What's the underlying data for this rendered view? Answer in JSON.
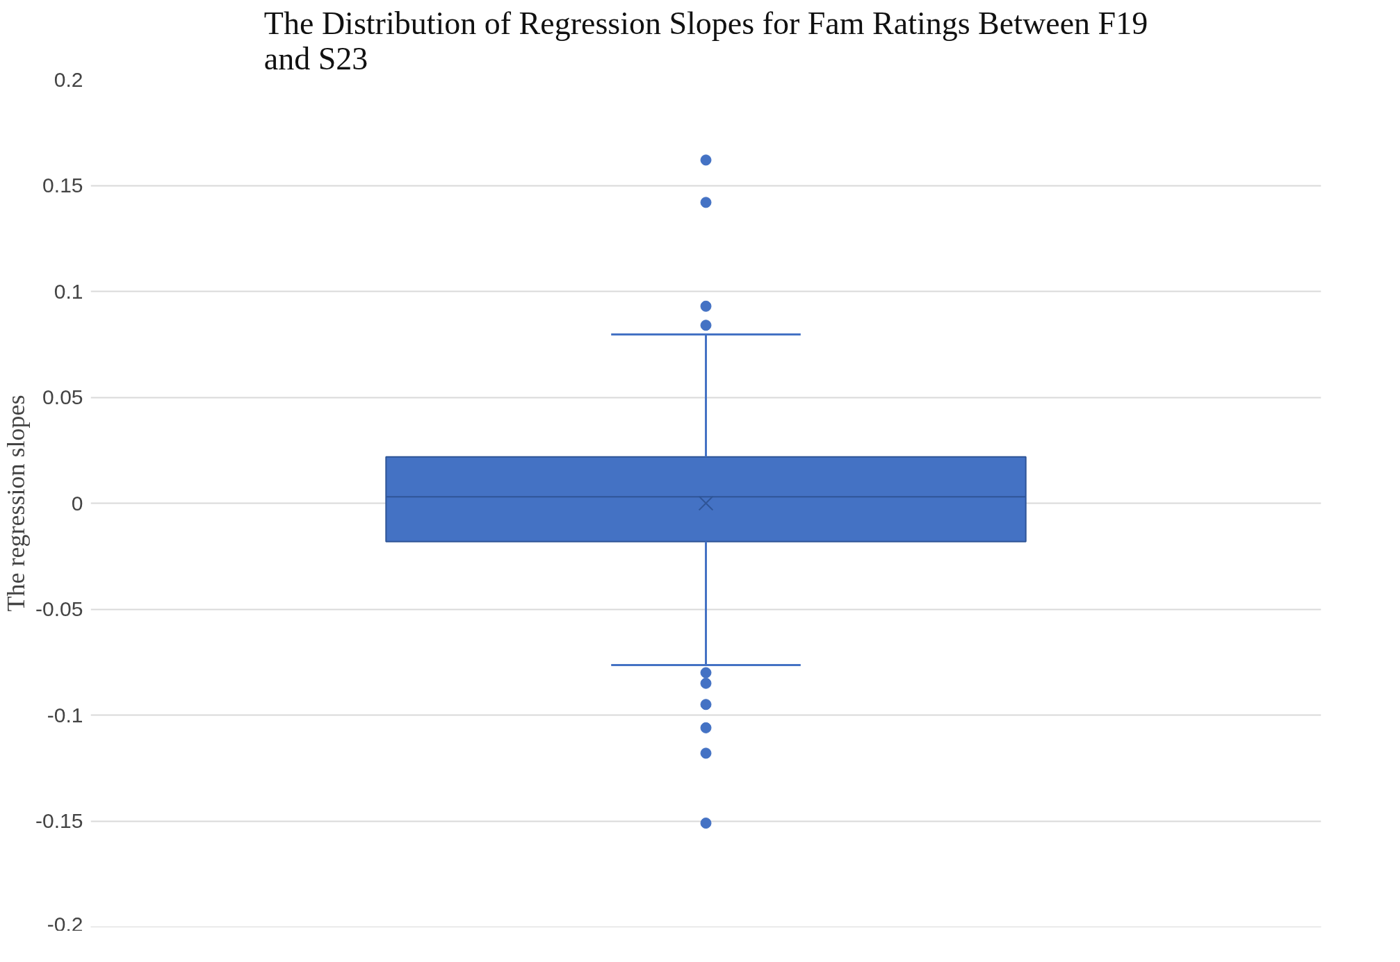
{
  "chart_data": {
    "type": "box",
    "title": "The Distribution of Regression Slopes for Fam Ratings Between F19 and S23",
    "ylabel": "The regression slopes",
    "categories": [
      null
    ],
    "color": "#4472c4",
    "boxes": [
      {
        "low": -0.0764,
        "q1": -0.0181,
        "median": 0.003,
        "q3": 0.0219,
        "high": 0.0797,
        "mean": 0.0,
        "outliers": [
          0.162,
          0.142,
          0.093,
          0.084,
          -0.08,
          -0.085,
          -0.095,
          -0.106,
          -0.118,
          -0.151
        ]
      }
    ],
    "ylim": [
      -0.2,
      0.2
    ],
    "yticks": [
      -0.2,
      -0.15,
      -0.1,
      -0.05,
      0,
      0.05,
      0.1,
      0.15,
      0.2
    ],
    "grid": "y"
  }
}
